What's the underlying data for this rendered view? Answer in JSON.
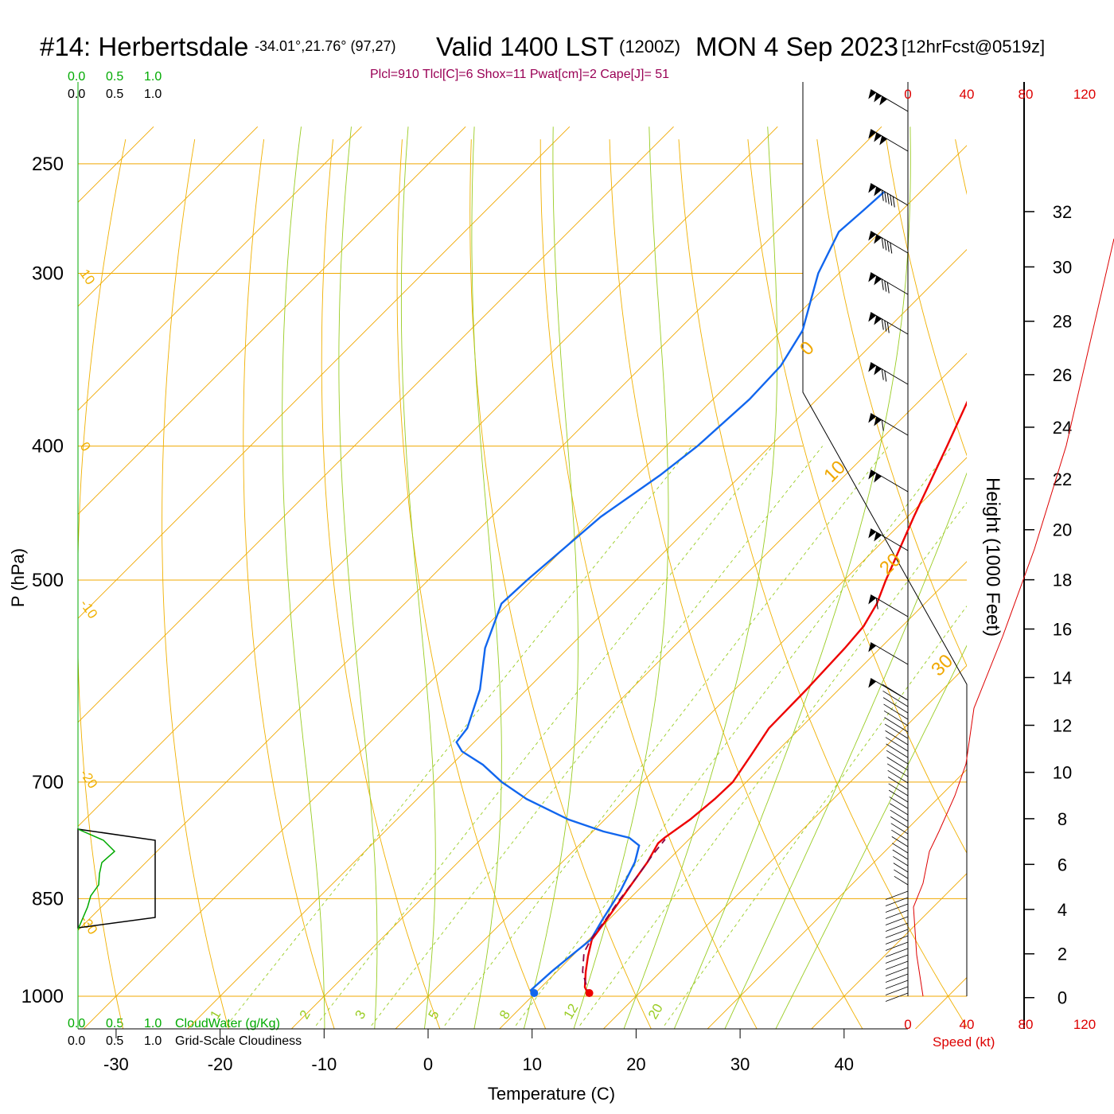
{
  "header": {
    "station": "#14: Herbertsdale",
    "coords": "-34.01°,21.76° (97,27)",
    "valid": "Valid 1400 LST",
    "utc": "(1200Z)",
    "date": "MON 4 Sep 2023",
    "forecast": "[12hrFcst@0519z]",
    "indices": "Plcl=910 Tlcl[C]=6 Shox=11 Pwat[cm]=2 Cape[J]= 51"
  },
  "colors": {
    "temperature": "#ee0000",
    "dewpoint": "#1166ee",
    "parcel": "#880044",
    "isotherm": "#f0a800",
    "dry_adiabat": "#f0b000",
    "moist_adiabat": "#99cc22",
    "mixing_ratio": "#99cc22",
    "cloud_water": "#00aa00",
    "wind_speed": "#dd0000",
    "index_text": "#990055"
  },
  "cloud_scale": {
    "top_green": [
      "0.0",
      "0.5",
      "1.0"
    ],
    "top_black": [
      "0.0",
      "0.5",
      "1.0"
    ],
    "bottom_green": [
      "0.0",
      "0.5",
      "1.0"
    ],
    "bottom_black": [
      "0.0",
      "0.5",
      "1.0"
    ],
    "cloudwater_label": "CloudWater (g/Kg)",
    "cloudiness_label": "Grid-Scale Cloudiness"
  },
  "chart_data": {
    "type": "line",
    "diagram": "skew-T log-P",
    "xlabel": "Temperature (C)",
    "ylabel": "P (hPa)",
    "right_ylabel": "Height (1000 Feet)",
    "x_ticks": [
      -30,
      -20,
      -10,
      0,
      10,
      20,
      30,
      40
    ],
    "x_tick_labels": [
      "-30",
      "-20",
      "-10",
      "0",
      "10",
      "20",
      "30",
      "40"
    ],
    "pressure_levels": [
      250,
      300,
      400,
      500,
      700,
      850,
      1000
    ],
    "pressure_labels": [
      "250",
      "300",
      "400",
      "500",
      "700",
      "850",
      "1000"
    ],
    "height_ticks": [
      0,
      2,
      4,
      6,
      8,
      10,
      12,
      14,
      16,
      18,
      20,
      22,
      24,
      26,
      28,
      30,
      32
    ],
    "height_tick_labels": [
      "0",
      "2",
      "4",
      "6",
      "8",
      "10",
      "12",
      "14",
      "16",
      "18",
      "20",
      "22",
      "24",
      "26",
      "28",
      "30",
      "32"
    ],
    "speed_ticks": [
      0,
      40,
      80,
      120
    ],
    "speed_tick_labels": [
      "0",
      "40",
      "80",
      "120"
    ],
    "speed_label": "Speed (kt)",
    "dry_adiabat_labels": [
      {
        "text": "10",
        "p": 300,
        "t": -33
      },
      {
        "text": "0",
        "p": 400,
        "t": -33
      },
      {
        "text": "-10",
        "p": 520,
        "t": -33
      },
      {
        "text": "-20",
        "p": 690,
        "t": -33
      },
      {
        "text": "-30",
        "p": 880,
        "t": -33
      }
    ],
    "isotherm_labels": [
      {
        "text": "0",
        "p": 340,
        "t": 37
      },
      {
        "text": "10",
        "p": 420,
        "t": 40
      },
      {
        "text": "20",
        "p": 490,
        "t": 44
      },
      {
        "text": "30",
        "p": 580,
        "t": 48
      }
    ],
    "mixing_ratio_labels": [
      "1",
      "2",
      "3",
      "5",
      "8",
      "12",
      "20"
    ],
    "series": [
      {
        "name": "",
        "kind": "temperature",
        "points": [
          {
            "p": 1000,
            "t": 15.5
          },
          {
            "p": 985,
            "t": 14.2
          },
          {
            "p": 960,
            "t": 12.8
          },
          {
            "p": 935,
            "t": 11.5
          },
          {
            "p": 910,
            "t": 10.3
          },
          {
            "p": 880,
            "t": 9.8
          },
          {
            "p": 840,
            "t": 9.0
          },
          {
            "p": 800,
            "t": 8.2
          },
          {
            "p": 775,
            "t": 7.4
          },
          {
            "p": 768,
            "t": 7.5
          },
          {
            "p": 745,
            "t": 8.2
          },
          {
            "p": 720,
            "t": 8.6
          },
          {
            "p": 700,
            "t": 8.7
          },
          {
            "p": 670,
            "t": 7.9
          },
          {
            "p": 640,
            "t": 7.0
          },
          {
            "p": 600,
            "t": 6.9
          },
          {
            "p": 560,
            "t": 6.6
          },
          {
            "p": 540,
            "t": 6.3
          },
          {
            "p": 520,
            "t": 5.4
          },
          {
            "p": 500,
            "t": 4.0
          },
          {
            "p": 450,
            "t": 0.6
          },
          {
            "p": 400,
            "t": -3.0
          },
          {
            "p": 360,
            "t": -6.3
          },
          {
            "p": 330,
            "t": -8.8
          },
          {
            "p": 300,
            "t": -11.5
          },
          {
            "p": 285,
            "t": -13.5
          },
          {
            "p": 270,
            "t": -15.7
          },
          {
            "p": 262,
            "t": -17.2
          }
        ]
      },
      {
        "name": "",
        "kind": "dewpoint",
        "points": [
          {
            "p": 1000,
            "t": 10.2
          },
          {
            "p": 990,
            "t": 9.3
          },
          {
            "p": 960,
            "t": 9.5
          },
          {
            "p": 930,
            "t": 9.9
          },
          {
            "p": 910,
            "t": 10.2
          },
          {
            "p": 880,
            "t": 9.4
          },
          {
            "p": 840,
            "t": 8.4
          },
          {
            "p": 800,
            "t": 7.0
          },
          {
            "p": 778,
            "t": 5.8
          },
          {
            "p": 768,
            "t": 4.1
          },
          {
            "p": 760,
            "t": 1.0
          },
          {
            "p": 745,
            "t": -3.5
          },
          {
            "p": 720,
            "t": -9.5
          },
          {
            "p": 700,
            "t": -13.5
          },
          {
            "p": 680,
            "t": -17.0
          },
          {
            "p": 665,
            "t": -20.3
          },
          {
            "p": 655,
            "t": -21.7
          },
          {
            "p": 640,
            "t": -22.0
          },
          {
            "p": 600,
            "t": -24.5
          },
          {
            "p": 560,
            "t": -28.0
          },
          {
            "p": 520,
            "t": -30.7
          },
          {
            "p": 500,
            "t": -30.5
          },
          {
            "p": 450,
            "t": -29.5
          },
          {
            "p": 420,
            "t": -27.8
          },
          {
            "p": 400,
            "t": -27.0
          },
          {
            "p": 370,
            "t": -26.5
          },
          {
            "p": 350,
            "t": -26.7
          },
          {
            "p": 330,
            "t": -28.0
          },
          {
            "p": 300,
            "t": -32.0
          },
          {
            "p": 280,
            "t": -34.0
          },
          {
            "p": 270,
            "t": -33.7
          },
          {
            "p": 262,
            "t": -33.5
          }
        ]
      },
      {
        "name": "",
        "kind": "parcel",
        "dashed": true,
        "points": [
          {
            "p": 1000,
            "t": 15.5
          },
          {
            "p": 960,
            "t": 12.5
          },
          {
            "p": 930,
            "t": 10.8
          },
          {
            "p": 910,
            "t": 10.2
          },
          {
            "p": 880,
            "t": 9.7
          },
          {
            "p": 850,
            "t": 9.1
          },
          {
            "p": 820,
            "t": 8.6
          },
          {
            "p": 790,
            "t": 8.0
          },
          {
            "p": 770,
            "t": 7.7
          }
        ]
      }
    ],
    "surface_points": {
      "temperature": {
        "p": 1000,
        "t": 15.5
      },
      "dewpoint": {
        "p": 1000,
        "t": 10.2
      }
    }
  }
}
